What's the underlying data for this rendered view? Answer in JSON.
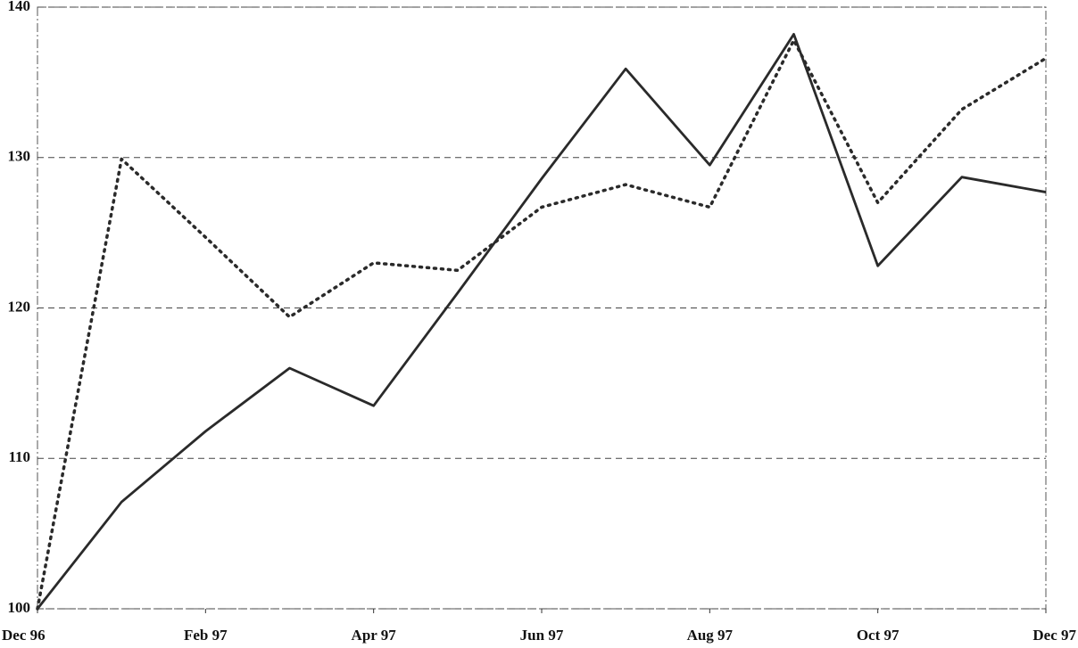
{
  "chart_data": {
    "type": "line",
    "categories": [
      "Dec 96",
      null,
      "Feb 97",
      null,
      "Apr 97",
      null,
      "Jun 97",
      null,
      "Aug 97",
      null,
      "Oct 97",
      null,
      "Dec 97"
    ],
    "series": [
      {
        "color": "#2a2a2a",
        "style": "solid",
        "values": [
          100,
          107.1,
          111.8,
          116,
          113.5,
          121,
          128.6,
          135.9,
          129.5,
          138.2,
          122.8,
          128.7,
          127.7
        ]
      },
      {
        "color": "#2a2a2a",
        "style": "dotted",
        "values": [
          100,
          129.9,
          124.7,
          119.4,
          123,
          122.5,
          126.7,
          128.2,
          126.7,
          137.8,
          127,
          133.2,
          136.6
        ]
      }
    ],
    "ylim": [
      100,
      140
    ],
    "yticks": [
      100,
      110,
      120,
      130,
      140
    ],
    "grid": true
  }
}
